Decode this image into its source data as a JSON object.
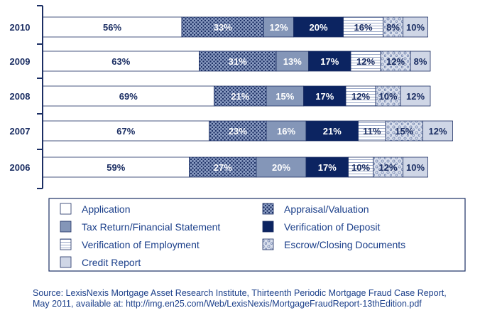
{
  "chart_data": {
    "type": "stacked-bar-horizontal",
    "categories": [
      "2010",
      "2009",
      "2008",
      "2007",
      "2006"
    ],
    "series": [
      {
        "name": "Application",
        "pattern": "plain-white",
        "values": [
          56,
          63,
          69,
          67,
          59
        ]
      },
      {
        "name": "Appraisal/Valuation",
        "pattern": "dots-dark",
        "values": [
          33,
          31,
          21,
          23,
          27
        ]
      },
      {
        "name": "Tax Return/Financial Statement",
        "pattern": "solid-steel",
        "values": [
          12,
          13,
          15,
          16,
          20
        ]
      },
      {
        "name": "Verification of Deposit",
        "pattern": "solid-navy",
        "values": [
          20,
          17,
          17,
          21,
          17
        ]
      },
      {
        "name": "Verification of Employment",
        "pattern": "horizontal-stripes",
        "values": [
          16,
          12,
          12,
          11,
          10
        ]
      },
      {
        "name": "Escrow/Closing Documents",
        "pattern": "circles-light",
        "values": [
          8,
          12,
          10,
          15,
          12
        ]
      },
      {
        "name": "Credit Report",
        "pattern": "solid-light",
        "values": [
          10,
          8,
          12,
          12,
          10
        ]
      }
    ],
    "value_suffix": "%",
    "legend_position": "bottom",
    "legend_order": [
      "Application",
      "Appraisal/Valuation",
      "Tax Return/Financial Statement",
      "Verification of Deposit",
      "Verification of Employment",
      "Escrow/Closing Documents",
      "Credit Report"
    ]
  },
  "source": {
    "line1": "Source:  LexisNexis Mortgage Asset Research Institute, Thirteenth Periodic Mortgage Fraud Case Report,",
    "line2": "May 2011, available at: http://img.en25.com/Web/LexisNexis/MortgageFraudReport-13thEdition.pdf"
  },
  "colors": {
    "navy": "#0c2461",
    "steel": "#8496b8",
    "light": "#cfd6e6",
    "outline": "#1b2e63",
    "text_dark": "#1b2e63",
    "text_white": "#ffffff"
  }
}
